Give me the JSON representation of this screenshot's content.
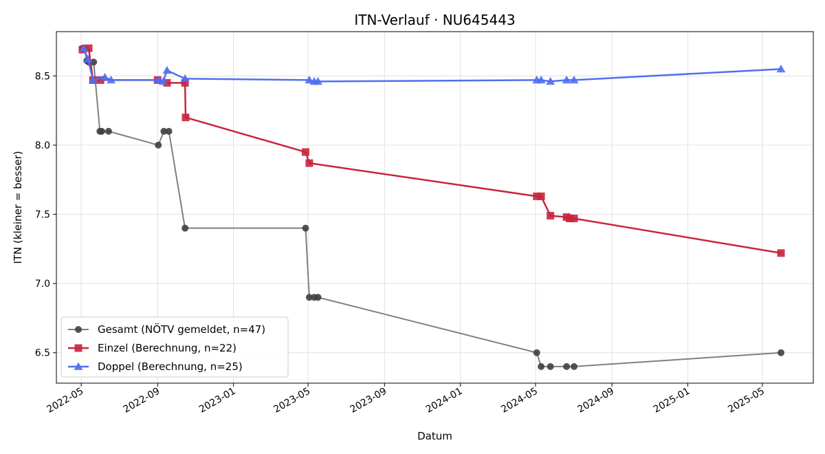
{
  "chart_data": {
    "type": "line",
    "title": "ITN-Verlauf · NU645443",
    "xlabel": "Datum",
    "ylabel": "ITN  (kleiner = besser)",
    "x_is_date": true,
    "xlim": [
      "2022-03-22",
      "2025-07-22"
    ],
    "ylim": [
      6.28,
      8.82
    ],
    "x_ticks": [
      "2022-05",
      "2022-09",
      "2023-01",
      "2023-05",
      "2023-09",
      "2024-01",
      "2024-05",
      "2024-09",
      "2025-01",
      "2025-05"
    ],
    "x_tick_dates": [
      "2022-05-01",
      "2022-09-01",
      "2023-01-01",
      "2023-05-01",
      "2023-09-01",
      "2024-01-01",
      "2024-05-01",
      "2024-09-01",
      "2025-01-01",
      "2025-05-01"
    ],
    "y_ticks": [
      6.5,
      7.0,
      7.5,
      8.0,
      8.5
    ],
    "y_tick_labels": [
      "6.5",
      "7.0",
      "7.5",
      "8.0",
      "8.5"
    ],
    "grid": true,
    "legend_position": "lower-left",
    "series": [
      {
        "name": "Gesamt (NÖTV gemeldet, n=47)",
        "color": "#7f7f7f",
        "marker_color": "#404040",
        "marker": "circle",
        "line_width": 2,
        "points": [
          [
            "2022-05-03",
            8.7
          ],
          [
            "2022-05-06",
            8.7
          ],
          [
            "2022-05-10",
            8.61
          ],
          [
            "2022-05-13",
            8.6
          ],
          [
            "2022-05-21",
            8.6
          ],
          [
            "2022-05-31",
            8.1
          ],
          [
            "2022-06-03",
            8.1
          ],
          [
            "2022-06-14",
            8.1
          ],
          [
            "2022-09-02",
            8.0
          ],
          [
            "2022-09-11",
            8.1
          ],
          [
            "2022-09-19",
            8.1
          ],
          [
            "2022-10-15",
            7.4
          ],
          [
            "2023-04-27",
            7.4
          ],
          [
            "2023-05-03",
            6.9
          ],
          [
            "2023-05-11",
            6.9
          ],
          [
            "2023-05-17",
            6.9
          ],
          [
            "2024-05-03",
            6.5
          ],
          [
            "2024-05-10",
            6.4
          ],
          [
            "2024-05-25",
            6.4
          ],
          [
            "2024-06-20",
            6.4
          ],
          [
            "2024-07-02",
            6.4
          ],
          [
            "2025-05-31",
            6.5
          ]
        ]
      },
      {
        "name": "Einzel (Berechnung, n=22)",
        "color": "#c8243d",
        "marker": "square",
        "line_width": 2.5,
        "points": [
          [
            "2022-05-03",
            8.69
          ],
          [
            "2022-05-13",
            8.7
          ],
          [
            "2022-05-20",
            8.47
          ],
          [
            "2022-06-01",
            8.47
          ],
          [
            "2022-09-01",
            8.47
          ],
          [
            "2022-09-16",
            8.45
          ],
          [
            "2022-10-15",
            8.45
          ],
          [
            "2022-10-16",
            8.2
          ],
          [
            "2023-04-27",
            7.95
          ],
          [
            "2023-05-03",
            7.87
          ],
          [
            "2024-05-03",
            7.63
          ],
          [
            "2024-05-10",
            7.63
          ],
          [
            "2024-05-25",
            7.49
          ],
          [
            "2024-06-20",
            7.48
          ],
          [
            "2024-06-25",
            7.47
          ],
          [
            "2024-07-02",
            7.47
          ],
          [
            "2025-05-31",
            7.22
          ]
        ]
      },
      {
        "name": "Doppel (Berechnung, n=25)",
        "color": "#4f6ff0",
        "marker": "triangle",
        "line_width": 2.5,
        "points": [
          [
            "2022-05-05",
            8.7
          ],
          [
            "2022-05-12",
            8.62
          ],
          [
            "2022-05-20",
            8.47
          ],
          [
            "2022-06-08",
            8.49
          ],
          [
            "2022-06-18",
            8.47
          ],
          [
            "2022-09-03",
            8.47
          ],
          [
            "2022-09-10",
            8.46
          ],
          [
            "2022-09-16",
            8.54
          ],
          [
            "2022-10-15",
            8.48
          ],
          [
            "2023-05-03",
            8.47
          ],
          [
            "2023-05-11",
            8.46
          ],
          [
            "2023-05-17",
            8.46
          ],
          [
            "2024-05-03",
            8.47
          ],
          [
            "2024-05-10",
            8.47
          ],
          [
            "2024-05-25",
            8.46
          ],
          [
            "2024-06-20",
            8.47
          ],
          [
            "2024-07-02",
            8.47
          ],
          [
            "2025-05-31",
            8.55
          ]
        ]
      }
    ]
  }
}
